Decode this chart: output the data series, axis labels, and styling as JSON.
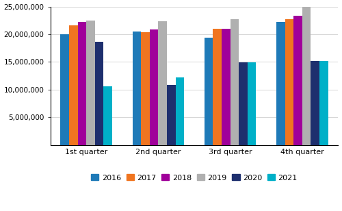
{
  "quarters": [
    "1st quarter",
    "2nd quarter",
    "3rd quarter",
    "4th quarter"
  ],
  "years": [
    "2016",
    "2017",
    "2018",
    "2019",
    "2020",
    "2021"
  ],
  "values": {
    "2016": [
      20000000,
      20500000,
      19400000,
      22200000
    ],
    "2017": [
      21600000,
      20400000,
      21000000,
      22700000
    ],
    "2018": [
      22200000,
      20900000,
      21000000,
      23300000
    ],
    "2019": [
      22500000,
      22300000,
      22700000,
      25000000
    ],
    "2020": [
      18700000,
      10800000,
      14900000,
      15200000
    ],
    "2021": [
      10600000,
      12200000,
      14900000,
      15200000
    ]
  },
  "colors": {
    "2016": "#1e7ab8",
    "2017": "#f07520",
    "2018": "#a0009a",
    "2019": "#b0b0b0",
    "2020": "#1e2f6e",
    "2021": "#00b0c8"
  },
  "ylim": [
    0,
    25000000
  ],
  "yticks": [
    5000000,
    10000000,
    15000000,
    20000000,
    25000000
  ],
  "bar_width": 0.12,
  "figsize": [
    5.0,
    3.08
  ],
  "dpi": 100
}
